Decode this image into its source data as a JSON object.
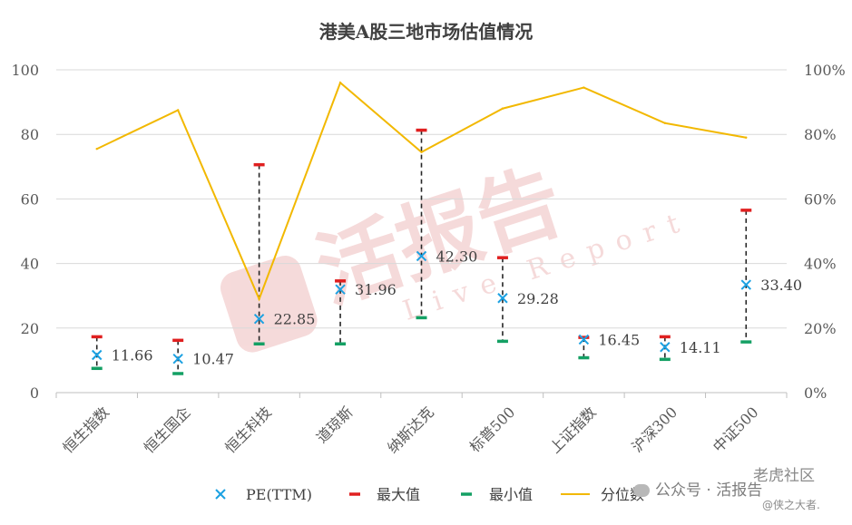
{
  "chart_data": {
    "type": "scatter",
    "title": "港美A股三地市场估值情况",
    "categories": [
      "恒生指数",
      "恒生国企",
      "恒生科技",
      "道琼斯",
      "纳斯达克",
      "标普500",
      "上证指数",
      "沪深300",
      "中证500"
    ],
    "series": [
      {
        "name": "PE(TTM)",
        "axis": "left",
        "marker": "x",
        "color": "#1BA1E2",
        "values": [
          11.66,
          10.47,
          22.85,
          31.96,
          42.3,
          29.28,
          16.45,
          14.11,
          33.4
        ],
        "labels": [
          "11.66",
          "10.47",
          "22.85",
          "31.96",
          "42.30",
          "29.28",
          "16.45",
          "14.11",
          "33.40"
        ]
      },
      {
        "name": "最大值",
        "axis": "left",
        "marker": "dash",
        "color": "#E02020",
        "values": [
          17.3,
          16.2,
          70.6,
          34.6,
          81.3,
          41.8,
          17.1,
          17.3,
          56.5
        ]
      },
      {
        "name": "最小值",
        "axis": "left",
        "marker": "dash",
        "color": "#14A064",
        "values": [
          7.5,
          5.9,
          15.1,
          15.1,
          23.2,
          15.9,
          10.8,
          10.3,
          15.7
        ]
      },
      {
        "name": "分位数",
        "axis": "right",
        "type": "line",
        "color": "#F2B800",
        "values": [
          0.755,
          0.875,
          0.29,
          0.96,
          0.745,
          0.88,
          0.945,
          0.835,
          0.79
        ]
      }
    ],
    "y_left": {
      "range": [
        0,
        100
      ],
      "ticks": [
        "0",
        "20",
        "40",
        "60",
        "80",
        "100"
      ]
    },
    "y_right": {
      "range": [
        0,
        1
      ],
      "ticks": [
        "0%",
        "20%",
        "40%",
        "60%",
        "80%",
        "100%"
      ]
    },
    "grid": true,
    "legend_position": "bottom",
    "legend": [
      "PE(TTM)",
      "最大值",
      "最小值",
      "分位数"
    ]
  },
  "watermark": {
    "text": "活报告",
    "sub": "Live Report",
    "social": "公众号 · 活报告",
    "corner1": "老虎社区",
    "corner2": "@侠之大者."
  }
}
